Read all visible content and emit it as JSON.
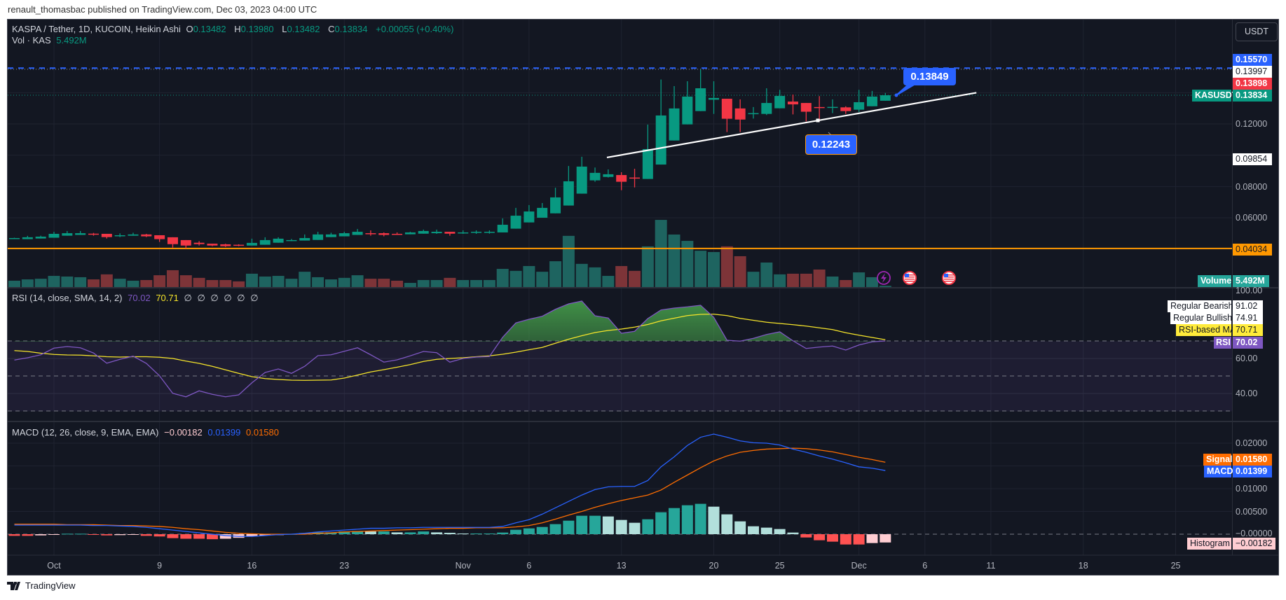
{
  "header": {
    "published": "renault_thomasbac published on TradingView.com, Dec 03, 2023 04:00 UTC"
  },
  "legend": {
    "symbol": "KASPA / Tether, 1D, KUCOIN, Heikin Ashi",
    "o_label": "O",
    "o": "0.13482",
    "h_label": "H",
    "h": "0.13980",
    "l_label": "L",
    "l": "0.13482",
    "c_label": "C",
    "c": "0.13834",
    "change": "+0.00055 (+0.40%)",
    "vol_label": "Vol · KAS",
    "vol": "5.492M"
  },
  "currency_button": "USDT",
  "price_axis": {
    "ticks": [
      "0.12000",
      "0.08000",
      "0.06000"
    ],
    "badge_alert": "0.15570",
    "badge_trend_end": "0.13997",
    "badge_red": "0.13898",
    "symbol_tag": "KASUSDT",
    "badge_last": "0.13834",
    "badge_trend_start": "0.09854",
    "badge_level": "0.04034",
    "volume_tag": "Volume",
    "volume_value": "5.492M"
  },
  "rsi": {
    "legend": "RSI (14, close, SMA, 14, 2)",
    "value": "70.02",
    "ma_value": "70.71",
    "empties": [
      "∅",
      "∅",
      "∅",
      "∅",
      "∅",
      "∅"
    ],
    "axis": [
      "100.00",
      "60.00",
      "40.00"
    ],
    "bearish_label": "Regular Bearish",
    "bearish_value": "91.02",
    "bullish_label": "Regular Bullish",
    "bullish_value": "74.91",
    "ma_label": "RSI-based MA",
    "ma_axis_value": "70.71",
    "rsi_label": "RSI",
    "rsi_axis_value": "70.02"
  },
  "macd": {
    "legend": "MACD (12, 26, close, 9, EMA, EMA)",
    "hist": "−0.00182",
    "macd": "0.01399",
    "signal": "0.01580",
    "axis": [
      "0.02000",
      "0.01000",
      "0.00500",
      "−0.00000"
    ],
    "signal_label": "Signal",
    "signal_axis_value": "0.01580",
    "macd_label": "MACD",
    "macd_axis_value": "0.01399",
    "hist_label": "Histogram",
    "hist_axis_value": "−0.00182"
  },
  "callouts": {
    "upper": "0.13849",
    "lower": "0.12243"
  },
  "time_axis": [
    {
      "label": "Oct",
      "day": 0
    },
    {
      "label": "9",
      "day": 8
    },
    {
      "label": "16",
      "day": 15
    },
    {
      "label": "23",
      "day": 22
    },
    {
      "label": "Nov",
      "day": 31
    },
    {
      "label": "6",
      "day": 36
    },
    {
      "label": "13",
      "day": 43
    },
    {
      "label": "20",
      "day": 50
    },
    {
      "label": "25",
      "day": 55
    },
    {
      "label": "Dec",
      "day": 61
    },
    {
      "label": "6",
      "day": 66
    },
    {
      "label": "11",
      "day": 71
    },
    {
      "label": "18",
      "day": 78
    },
    {
      "label": "25",
      "day": 85
    }
  ],
  "footer": {
    "brand": "TradingView"
  },
  "colors": {
    "up": "#089981",
    "down": "#f23645",
    "vol_up": "#1e6460",
    "vol_down": "#7d3438",
    "rsi": "#7e57c2",
    "rsi_ma": "#f5e42a",
    "macd": "#2962ff",
    "signal": "#ff6d00",
    "hist_up_strong": "#26a69a",
    "hist_up_weak": "#b2dfdb",
    "hist_dn_strong": "#ff5252",
    "hist_dn_weak": "#ffcdd2",
    "level": "#ff9800"
  },
  "chart_data": {
    "type": "candlestick",
    "title": "KASPA / Tether, 1D, KUCOIN, Heikin Ashi",
    "first_day": -3,
    "candles_ohlc": [
      [
        0.0469,
        0.0472,
        0.0467,
        0.047
      ],
      [
        0.0463,
        0.0484,
        0.0463,
        0.0475
      ],
      [
        0.0467,
        0.0485,
        0.0467,
        0.0479
      ],
      [
        0.0472,
        0.051,
        0.0472,
        0.0497
      ],
      [
        0.0485,
        0.0515,
        0.0485,
        0.0501
      ],
      [
        0.049,
        0.0515,
        0.049,
        0.0501
      ],
      [
        0.0498,
        0.0503,
        0.0485,
        0.0493
      ],
      [
        0.0497,
        0.0497,
        0.0467,
        0.0476
      ],
      [
        0.0485,
        0.05,
        0.0476,
        0.0488
      ],
      [
        0.0485,
        0.0504,
        0.0485,
        0.0493
      ],
      [
        0.0493,
        0.0497,
        0.0476,
        0.0481
      ],
      [
        0.0488,
        0.0488,
        0.0445,
        0.0463
      ],
      [
        0.0475,
        0.0475,
        0.0409,
        0.0431
      ],
      [
        0.0457,
        0.0457,
        0.0404,
        0.0422
      ],
      [
        0.044,
        0.045,
        0.0422,
        0.0431
      ],
      [
        0.0434,
        0.0434,
        0.0418,
        0.0422
      ],
      [
        0.043,
        0.0434,
        0.0413,
        0.0418
      ],
      [
        0.0427,
        0.043,
        0.0418,
        0.0422
      ],
      [
        0.0422,
        0.0466,
        0.0422,
        0.0439
      ],
      [
        0.0427,
        0.0475,
        0.0427,
        0.0457
      ],
      [
        0.044,
        0.0475,
        0.044,
        0.0466
      ],
      [
        0.0454,
        0.0464,
        0.045,
        0.0457
      ],
      [
        0.0454,
        0.0493,
        0.0454,
        0.047
      ],
      [
        0.0458,
        0.051,
        0.0458,
        0.0493
      ],
      [
        0.0476,
        0.0504,
        0.0476,
        0.0493
      ],
      [
        0.0481,
        0.051,
        0.0481,
        0.0501
      ],
      [
        0.049,
        0.0528,
        0.049,
        0.051
      ],
      [
        0.0501,
        0.0519,
        0.0485,
        0.0498
      ],
      [
        0.0501,
        0.0506,
        0.0481,
        0.049
      ],
      [
        0.0497,
        0.0506,
        0.049,
        0.0493
      ],
      [
        0.0494,
        0.051,
        0.0494,
        0.0506
      ],
      [
        0.0498,
        0.0524,
        0.0498,
        0.0515
      ],
      [
        0.0501,
        0.0524,
        0.0497,
        0.051
      ],
      [
        0.051,
        0.051,
        0.0485,
        0.0498
      ],
      [
        0.0503,
        0.0519,
        0.0497,
        0.0506
      ],
      [
        0.0507,
        0.0519,
        0.0497,
        0.051
      ],
      [
        0.0507,
        0.0519,
        0.0498,
        0.051
      ],
      [
        0.0506,
        0.0596,
        0.0506,
        0.0555
      ],
      [
        0.053,
        0.0663,
        0.053,
        0.0613
      ],
      [
        0.057,
        0.0681,
        0.057,
        0.064
      ],
      [
        0.06,
        0.0694,
        0.06,
        0.0663
      ],
      [
        0.0628,
        0.0792,
        0.0628,
        0.073
      ],
      [
        0.0678,
        0.0931,
        0.0678,
        0.0833
      ],
      [
        0.0754,
        0.099,
        0.0754,
        0.0927
      ],
      [
        0.0839,
        0.0921,
        0.083,
        0.0887
      ],
      [
        0.0861,
        0.0909,
        0.0857,
        0.0878
      ],
      [
        0.0873,
        0.0891,
        0.0776,
        0.083
      ],
      [
        0.0857,
        0.0913,
        0.0794,
        0.0854
      ],
      [
        0.0848,
        0.1196,
        0.0848,
        0.1039
      ],
      [
        0.094,
        0.1484,
        0.094,
        0.1254
      ],
      [
        0.1094,
        0.1442,
        0.1094,
        0.1299
      ],
      [
        0.1197,
        0.1473,
        0.1197,
        0.1375
      ],
      [
        0.1282,
        0.1548,
        0.1282,
        0.1428
      ],
      [
        0.1355,
        0.1473,
        0.1264,
        0.1366
      ],
      [
        0.1361,
        0.1361,
        0.1148,
        0.1233
      ],
      [
        0.1299,
        0.1357,
        0.1148,
        0.1228
      ],
      [
        0.1266,
        0.1308,
        0.1234,
        0.1269
      ],
      [
        0.1264,
        0.1428,
        0.1257,
        0.1334
      ],
      [
        0.13,
        0.1418,
        0.13,
        0.1379
      ],
      [
        0.1343,
        0.1388,
        0.1261,
        0.1325
      ],
      [
        0.1334,
        0.1334,
        0.1216,
        0.1278
      ],
      [
        0.1308,
        0.1378,
        0.1216,
        0.1302
      ],
      [
        0.1306,
        0.1357,
        0.1269,
        0.1309
      ],
      [
        0.1306,
        0.1313,
        0.1264,
        0.1282
      ],
      [
        0.1291,
        0.1418,
        0.1276,
        0.1339
      ],
      [
        0.1313,
        0.1411,
        0.1313,
        0.1375
      ],
      [
        0.13482,
        0.1398,
        0.13482,
        0.13834
      ]
    ],
    "volume_millions": [
      29,
      35,
      38,
      51,
      48,
      45,
      35,
      58,
      38,
      29,
      32,
      54,
      77,
      54,
      42,
      32,
      32,
      26,
      61,
      48,
      51,
      38,
      70,
      45,
      35,
      42,
      54,
      38,
      38,
      29,
      19,
      32,
      32,
      42,
      32,
      32,
      32,
      83,
      74,
      96,
      70,
      118,
      234,
      106,
      90,
      51,
      96,
      74,
      186,
      307,
      240,
      211,
      166,
      160,
      186,
      141,
      70,
      112,
      58,
      61,
      61,
      80,
      48,
      32,
      67,
      45,
      5.492
    ],
    "rsi": [
      59.1,
      60.4,
      62.1,
      65.9,
      66.8,
      66.1,
      63.1,
      57.3,
      59.5,
      61.3,
      57.2,
      50.1,
      40.1,
      38.1,
      41.5,
      39.5,
      38.1,
      39.2,
      46.1,
      52,
      54,
      51.5,
      55.5,
      61.6,
      62.1,
      64.1,
      66.1,
      62.1,
      57.9,
      59.2,
      61.5,
      64,
      63.3,
      57.9,
      60,
      60.8,
      61.1,
      72.1,
      80.3,
      82.4,
      84.1,
      88.1,
      91.2,
      92.8,
      84.4,
      83.1,
      74.4,
      75.5,
      82.8,
      87.7,
      88.8,
      89.5,
      90.4,
      83.5,
      70.4,
      69.9,
      71.5,
      73.7,
      75.2,
      70.1,
      65.7,
      66.5,
      67.1,
      64.8,
      67.7,
      69.5,
      70.02
    ],
    "rsi_ma": [
      64.5,
      64,
      63,
      62.3,
      62,
      61.9,
      61.5,
      61,
      60.8,
      61,
      61,
      60.7,
      60,
      58.5,
      57.2,
      55.5,
      53.5,
      51.5,
      49.6,
      48.5,
      48,
      47.6,
      47.5,
      47.6,
      47.7,
      48.8,
      50.5,
      52.3,
      53.6,
      55,
      56.5,
      58.3,
      59.5,
      60,
      60.4,
      61,
      61.5,
      62.4,
      63.6,
      65,
      66.3,
      68.7,
      71,
      73,
      74.8,
      76,
      76.8,
      77.9,
      79.4,
      81.5,
      83,
      84.5,
      85.2,
      85.3,
      84.5,
      82.9,
      81.8,
      80.7,
      80,
      79.3,
      78.5,
      77.5,
      76.5,
      74.7,
      73.3,
      72,
      70.71
    ],
    "rsi_levels": {
      "upper": 70,
      "middle": 50,
      "lower": 30
    },
    "macd": [
      0.002,
      0.002,
      0.002,
      0.002,
      0.002,
      0.002,
      0.0019,
      0.0019,
      0.0018,
      0.0017,
      0.0015,
      0.0012,
      0.0009,
      0.0006,
      0.0003,
      0.0,
      -0.0003,
      -0.0005,
      -0.0005,
      -0.0003,
      -0.0001,
      0.0,
      0.0002,
      0.0005,
      0.0007,
      0.0009,
      0.0011,
      0.0013,
      0.0013,
      0.0014,
      0.0014,
      0.0015,
      0.0015,
      0.0015,
      0.0015,
      0.0015,
      0.0015,
      0.0017,
      0.0025,
      0.0032,
      0.0044,
      0.0058,
      0.0072,
      0.0086,
      0.0098,
      0.0104,
      0.0105,
      0.0105,
      0.0118,
      0.0148,
      0.017,
      0.0195,
      0.0213,
      0.022,
      0.0213,
      0.0205,
      0.0201,
      0.02,
      0.0196,
      0.0187,
      0.018,
      0.0172,
      0.0165,
      0.0157,
      0.0148,
      0.0145,
      0.01399
    ],
    "signal": [
      0.0022,
      0.0022,
      0.0022,
      0.0022,
      0.0021,
      0.0021,
      0.0021,
      0.002,
      0.0019,
      0.0019,
      0.0018,
      0.0017,
      0.0015,
      0.0012,
      0.001,
      0.0007,
      0.0004,
      0.0002,
      0.0001,
      0.0,
      0.0,
      0.0,
      0.0,
      0.0002,
      0.0003,
      0.0005,
      0.0006,
      0.0007,
      0.0008,
      0.0009,
      0.001,
      0.0011,
      0.0012,
      0.0013,
      0.0013,
      0.0014,
      0.0014,
      0.0014,
      0.0016,
      0.0019,
      0.0025,
      0.0033,
      0.0042,
      0.005,
      0.0059,
      0.0067,
      0.0074,
      0.008,
      0.0086,
      0.0097,
      0.0114,
      0.013,
      0.0146,
      0.0161,
      0.0172,
      0.018,
      0.0184,
      0.0187,
      0.0188,
      0.0189,
      0.0188,
      0.0185,
      0.0181,
      0.0175,
      0.0169,
      0.0164,
      0.0158
    ],
    "histogram": [
      -0.00036,
      -0.00036,
      -0.00026,
      -0.00015,
      0.0001,
      0.0001,
      -0.0001,
      -0.00026,
      -0.0002,
      -0.00015,
      -0.00036,
      -0.0005,
      -0.00087,
      -0.001,
      -0.001,
      -0.0011,
      -0.001,
      -0.0008,
      -0.0005,
      -0.0003,
      -0.0002,
      5e-05,
      0.00026,
      0.0004,
      0.0004,
      0.0006,
      0.0007,
      0.0006,
      0.0006,
      0.0004,
      0.0004,
      0.0006,
      0.0004,
      0.0003,
      0.00015,
      0.00015,
      0.00015,
      0.00036,
      0.00097,
      0.00128,
      0.00159,
      0.00221,
      0.00297,
      0.00405,
      0.00405,
      0.0039,
      0.00313,
      0.00251,
      0.00328,
      0.00482,
      0.00574,
      0.00636,
      0.00667,
      0.00605,
      0.00436,
      0.00282,
      0.00174,
      0.00144,
      0.00113,
      0.00036,
      -0.00072,
      -0.00133,
      -0.00164,
      -0.00226,
      -0.00226,
      -0.00195,
      -0.00182
    ],
    "trendline": {
      "start": {
        "day": 41.9,
        "price": 0.09854
      },
      "end": {
        "day": 69.9,
        "price": 0.13997
      }
    },
    "horizontal_levels": {
      "alert": 0.1557,
      "support": 0.04034,
      "last": 0.13834,
      "high": 0.155
    },
    "price_range": [
      0.035,
      0.165
    ],
    "ylabel": "USDT"
  }
}
